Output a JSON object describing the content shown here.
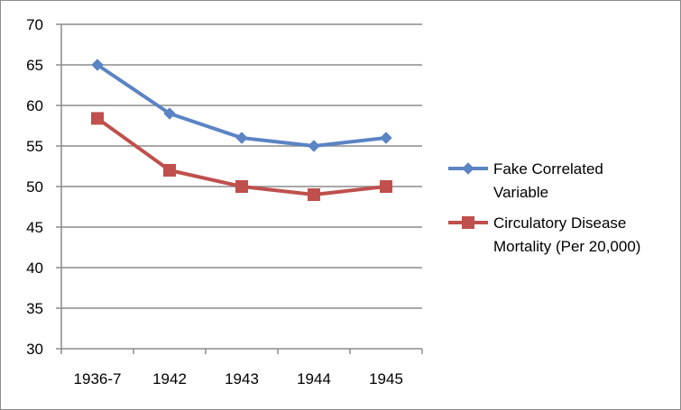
{
  "chart_data": {
    "type": "line",
    "title": "",
    "xlabel": "",
    "ylabel": "",
    "categories": [
      "1936-7",
      "1942",
      "1943",
      "1944",
      "1945"
    ],
    "ylim": [
      30,
      70
    ],
    "y_ticks": [
      "30",
      "35",
      "40",
      "45",
      "50",
      "55",
      "60",
      "65",
      "70"
    ],
    "grid": true,
    "legend_position": "right",
    "series": [
      {
        "name_lines": [
          "Fake Correlated",
          "Variable"
        ],
        "values": [
          65,
          59,
          56,
          55,
          56
        ],
        "color": "#5b84c4",
        "marker": "diamond"
      },
      {
        "name_lines": [
          "Circulatory Disease",
          "Mortality (Per 20,000)"
        ],
        "values": [
          58.4,
          52,
          50,
          49,
          50
        ],
        "color": "#bf504d",
        "marker": "square"
      }
    ]
  }
}
